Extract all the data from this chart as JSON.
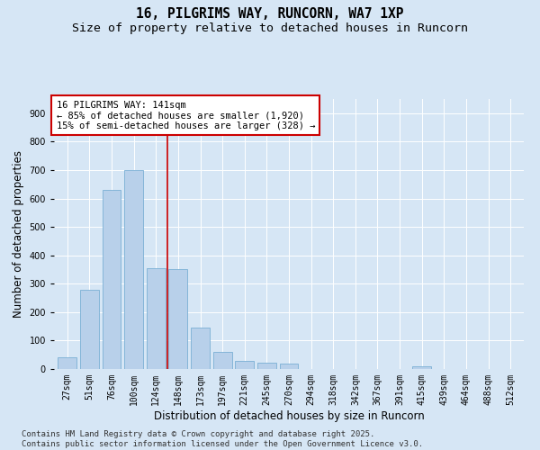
{
  "title_line1": "16, PILGRIMS WAY, RUNCORN, WA7 1XP",
  "title_line2": "Size of property relative to detached houses in Runcorn",
  "xlabel": "Distribution of detached houses by size in Runcorn",
  "ylabel": "Number of detached properties",
  "categories": [
    "27sqm",
    "51sqm",
    "76sqm",
    "100sqm",
    "124sqm",
    "148sqm",
    "173sqm",
    "197sqm",
    "221sqm",
    "245sqm",
    "270sqm",
    "294sqm",
    "318sqm",
    "342sqm",
    "367sqm",
    "391sqm",
    "415sqm",
    "439sqm",
    "464sqm",
    "488sqm",
    "512sqm"
  ],
  "values": [
    42,
    280,
    630,
    700,
    355,
    350,
    145,
    60,
    28,
    22,
    18,
    0,
    0,
    0,
    0,
    0,
    8,
    0,
    0,
    0,
    0
  ],
  "bar_color": "#b8d0ea",
  "bar_edge_color": "#7aafd4",
  "vline_color": "#cc0000",
  "vline_pos": 4.5,
  "annotation_text": "16 PILGRIMS WAY: 141sqm\n← 85% of detached houses are smaller (1,920)\n15% of semi-detached houses are larger (328) →",
  "annotation_box_facecolor": "#ffffff",
  "annotation_box_edgecolor": "#cc0000",
  "ylim": [
    0,
    950
  ],
  "yticks": [
    0,
    100,
    200,
    300,
    400,
    500,
    600,
    700,
    800,
    900
  ],
  "bg_color": "#d6e6f5",
  "grid_color": "#ffffff",
  "footnote": "Contains HM Land Registry data © Crown copyright and database right 2025.\nContains public sector information licensed under the Open Government Licence v3.0.",
  "title_fontsize": 10.5,
  "subtitle_fontsize": 9.5,
  "xlabel_fontsize": 8.5,
  "ylabel_fontsize": 8.5,
  "tick_fontsize": 7,
  "annotation_fontsize": 7.5,
  "footnote_fontsize": 6.5
}
